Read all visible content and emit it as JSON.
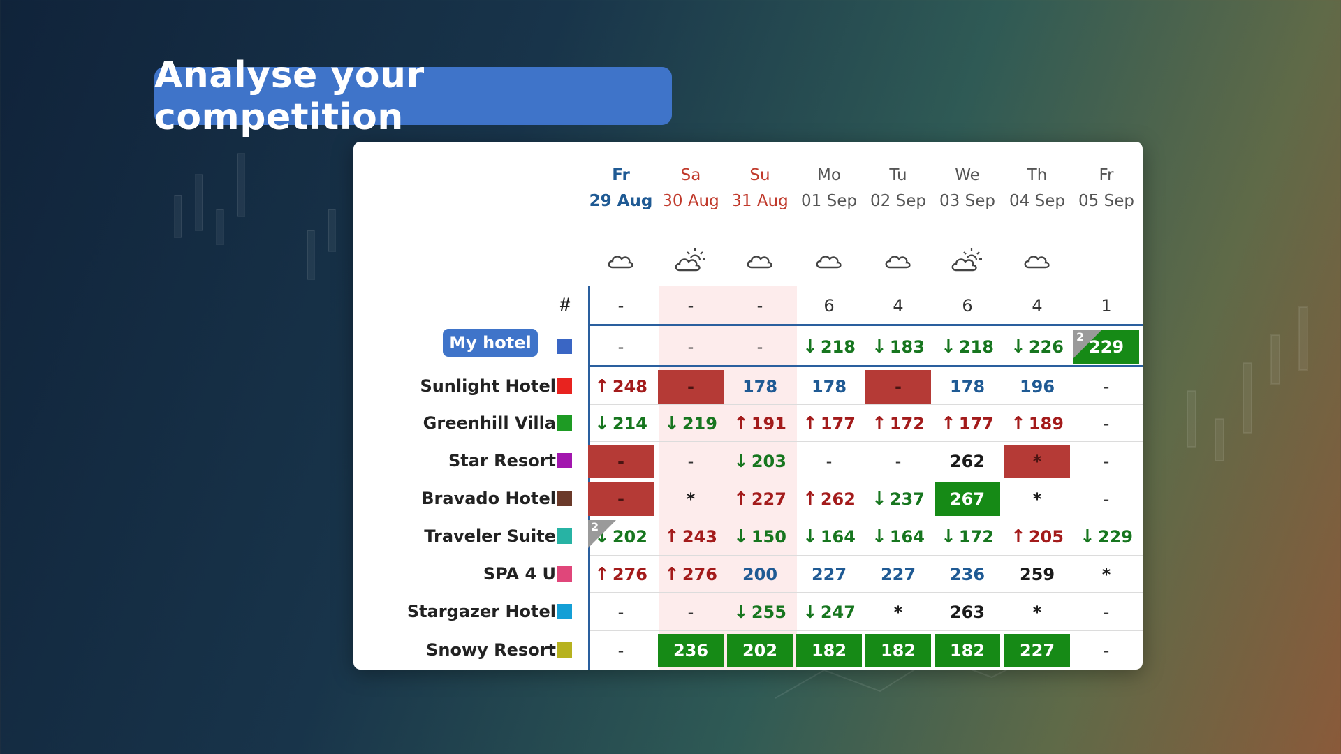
{
  "title": "Analyse your competition",
  "hash_label": "#",
  "colors": {
    "accent": "#3f74c9",
    "up": "#a31b1b",
    "down": "#17761f",
    "red_cell": "#b53a36",
    "green_cell": "#168a16"
  },
  "days": [
    {
      "dow": "Fr",
      "date": "29 Aug",
      "style": "fri1",
      "weather": "cloud-icon"
    },
    {
      "dow": "Sa",
      "date": "30 Aug",
      "style": "weekend",
      "weather": "sun-cloud-icon"
    },
    {
      "dow": "Su",
      "date": "31 Aug",
      "style": "weekend",
      "weather": "cloud-icon"
    },
    {
      "dow": "Mo",
      "date": "01 Sep",
      "style": "normal",
      "weather": "cloud-icon"
    },
    {
      "dow": "Tu",
      "date": "02 Sep",
      "style": "normal",
      "weather": "cloud-icon"
    },
    {
      "dow": "We",
      "date": "03 Sep",
      "style": "normal",
      "weather": "sun-cloud-icon"
    },
    {
      "dow": "Th",
      "date": "04 Sep",
      "style": "normal",
      "weather": "cloud-icon"
    },
    {
      "dow": "Fr",
      "date": "05 Sep",
      "style": "normal",
      "weather": ""
    }
  ],
  "rank_row": [
    "-",
    "-",
    "-",
    "6",
    "4",
    "6",
    "4",
    "1"
  ],
  "hotels": [
    {
      "name": "My hotel",
      "color": "#3a66c4",
      "mine": true,
      "cells": [
        {
          "v": "-",
          "t": "plain"
        },
        {
          "v": "-",
          "t": "plain"
        },
        {
          "v": "-",
          "t": "plain"
        },
        {
          "v": "218",
          "t": "down"
        },
        {
          "v": "183",
          "t": "down"
        },
        {
          "v": "218",
          "t": "down"
        },
        {
          "v": "226",
          "t": "down"
        },
        {
          "v": "229",
          "t": "green-bg",
          "corner": "2"
        }
      ]
    },
    {
      "name": "Sunlight Hotel",
      "color": "#e8231f",
      "cells": [
        {
          "v": "248",
          "t": "up"
        },
        {
          "v": "-",
          "t": "red-bg"
        },
        {
          "v": "178",
          "t": "blue"
        },
        {
          "v": "178",
          "t": "blue"
        },
        {
          "v": "-",
          "t": "red-bg"
        },
        {
          "v": "178",
          "t": "blue"
        },
        {
          "v": "196",
          "t": "blue"
        },
        {
          "v": "-",
          "t": "plain"
        }
      ]
    },
    {
      "name": "Greenhill Villa",
      "color": "#1e9b24",
      "cells": [
        {
          "v": "214",
          "t": "down"
        },
        {
          "v": "219",
          "t": "down"
        },
        {
          "v": "191",
          "t": "up"
        },
        {
          "v": "177",
          "t": "up"
        },
        {
          "v": "172",
          "t": "up"
        },
        {
          "v": "177",
          "t": "up"
        },
        {
          "v": "189",
          "t": "up"
        },
        {
          "v": "-",
          "t": "plain"
        }
      ]
    },
    {
      "name": "Star Resort",
      "color": "#a216ae",
      "cells": [
        {
          "v": "-",
          "t": "red-bg"
        },
        {
          "v": "-",
          "t": "plain"
        },
        {
          "v": "203",
          "t": "down"
        },
        {
          "v": "-",
          "t": "plain"
        },
        {
          "v": "-",
          "t": "plain"
        },
        {
          "v": "262",
          "t": "dark"
        },
        {
          "v": "*",
          "t": "red-bg"
        },
        {
          "v": "-",
          "t": "plain"
        }
      ]
    },
    {
      "name": "Bravado Hotel",
      "color": "#6b3a2a",
      "cells": [
        {
          "v": "-",
          "t": "red-bg"
        },
        {
          "v": "*",
          "t": "dark"
        },
        {
          "v": "227",
          "t": "up"
        },
        {
          "v": "262",
          "t": "up"
        },
        {
          "v": "237",
          "t": "down"
        },
        {
          "v": "267",
          "t": "green-bg"
        },
        {
          "v": "*",
          "t": "dark"
        },
        {
          "v": "-",
          "t": "plain"
        }
      ]
    },
    {
      "name": "Traveler Suite",
      "color": "#27b3a4",
      "cells": [
        {
          "v": "202",
          "t": "down",
          "corner": "2"
        },
        {
          "v": "243",
          "t": "up"
        },
        {
          "v": "150",
          "t": "down"
        },
        {
          "v": "164",
          "t": "down"
        },
        {
          "v": "164",
          "t": "down"
        },
        {
          "v": "172",
          "t": "down"
        },
        {
          "v": "205",
          "t": "up"
        },
        {
          "v": "229",
          "t": "down"
        }
      ]
    },
    {
      "name": "SPA 4 U",
      "color": "#e0467a",
      "cells": [
        {
          "v": "276",
          "t": "up"
        },
        {
          "v": "276",
          "t": "up"
        },
        {
          "v": "200",
          "t": "blue"
        },
        {
          "v": "227",
          "t": "blue"
        },
        {
          "v": "227",
          "t": "blue"
        },
        {
          "v": "236",
          "t": "blue"
        },
        {
          "v": "259",
          "t": "dark"
        },
        {
          "v": "*",
          "t": "dark"
        }
      ]
    },
    {
      "name": "Stargazer Hotel",
      "color": "#149fd6",
      "cells": [
        {
          "v": "-",
          "t": "plain"
        },
        {
          "v": "-",
          "t": "plain"
        },
        {
          "v": "255",
          "t": "down"
        },
        {
          "v": "247",
          "t": "down"
        },
        {
          "v": "*",
          "t": "dark"
        },
        {
          "v": "263",
          "t": "dark"
        },
        {
          "v": "*",
          "t": "dark"
        },
        {
          "v": "-",
          "t": "plain"
        }
      ]
    },
    {
      "name": "Snowy Resort",
      "color": "#b7b21f",
      "cells": [
        {
          "v": "-",
          "t": "plain"
        },
        {
          "v": "236",
          "t": "green-bg"
        },
        {
          "v": "202",
          "t": "green-bg"
        },
        {
          "v": "182",
          "t": "green-bg"
        },
        {
          "v": "182",
          "t": "green-bg"
        },
        {
          "v": "182",
          "t": "green-bg"
        },
        {
          "v": "227",
          "t": "green-bg"
        },
        {
          "v": "-",
          "t": "plain"
        }
      ]
    }
  ]
}
